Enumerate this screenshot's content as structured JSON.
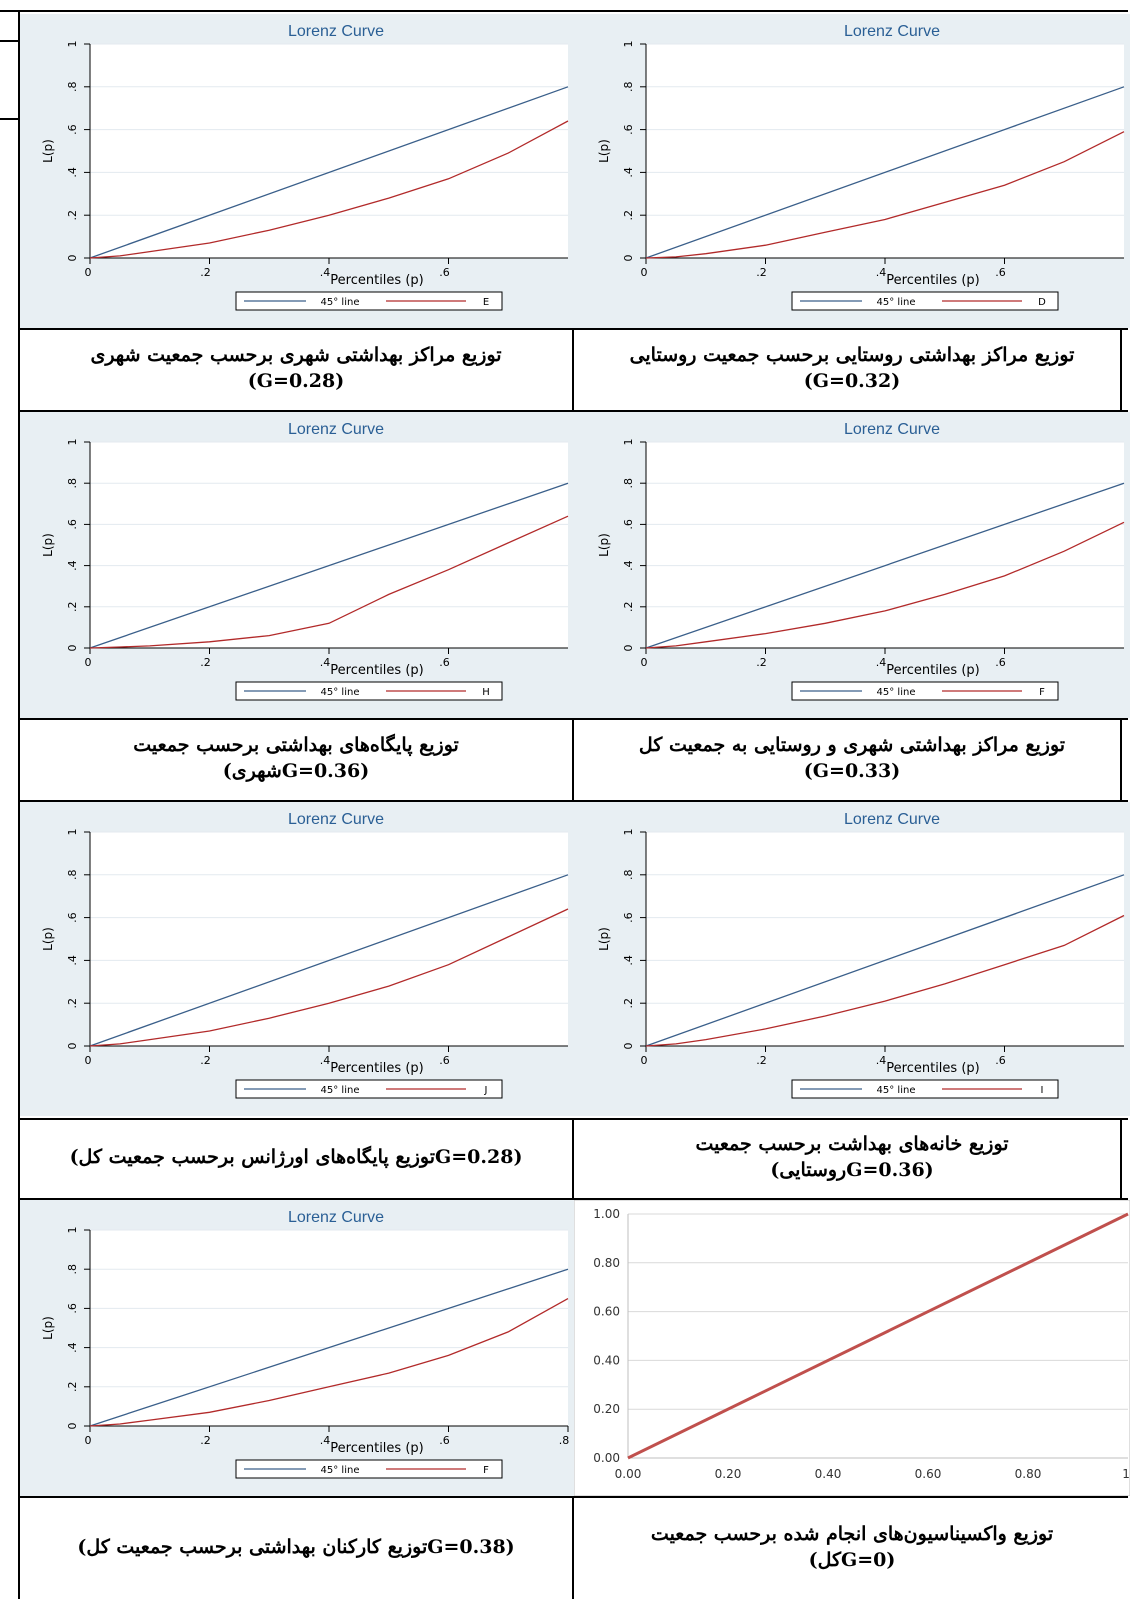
{
  "panels": [
    {
      "id": "E",
      "title": "Lorenz Curve",
      "ylabel": "L(p)",
      "xlabel": "Percentiles (p)",
      "legend": [
        "45° line",
        "E"
      ],
      "caption": [
        "توزیع مراکز بهداشتی شهری برحسب جمعیت شهری",
        "(G=0.28)"
      ]
    },
    {
      "id": "D",
      "title": "Lorenz Curve",
      "ylabel": "L(p)",
      "xlabel": "Percentiles (p)",
      "legend": [
        "45° line",
        "D"
      ],
      "caption": [
        "توزیع مراکز بهداشتی روستایی برحسب جمعیت روستایی",
        "(G=0.32)"
      ]
    },
    {
      "id": "H",
      "title": "Lorenz Curve",
      "ylabel": "L(p)",
      "xlabel": "Percentiles (p)",
      "legend": [
        "45° line",
        "H"
      ],
      "caption": [
        "توزیع پایگاه‌های بهداشتی برحسب جمعیت",
        "(G=0.36شهری)"
      ]
    },
    {
      "id": "F",
      "title": "Lorenz Curve",
      "ylabel": "L(p)",
      "xlabel": "Percentiles (p)",
      "legend": [
        "45° line",
        "F"
      ],
      "caption": [
        "توزیع مراکز بهداشتی شهری و روستایی به جمعیت کل",
        "(G=0.33)"
      ]
    },
    {
      "id": "J",
      "title": "Lorenz Curve",
      "ylabel": "L(p)",
      "xlabel": "Percentiles (p)",
      "legend": [
        "45° line",
        "J"
      ],
      "caption": [
        "(G=0.28توزیع پایگاه‌های اورژانس برحسب جمعیت کل)"
      ]
    },
    {
      "id": "I",
      "title": "Lorenz Curve",
      "ylabel": "L(p)",
      "xlabel": "Percentiles (p)",
      "legend": [
        "45° line",
        "I"
      ],
      "caption": [
        "توزیع خانه‌های بهداشت برحسب جمعیت",
        "(G=0.36روستایی)"
      ]
    },
    {
      "id": "F2",
      "title": "Lorenz Curve",
      "ylabel": "L(p)",
      "xlabel": "Percentiles (p)",
      "legend": [
        "45° line",
        "F"
      ],
      "caption": [
        "(G=0.38توزیع کارکنان بهداشتی برحسب جمعیت کل)"
      ]
    },
    {
      "id": "V",
      "title": "",
      "ylabel": "",
      "xlabel": "",
      "legend": [],
      "caption": [
        "توزیع واکسیناسیون‌های انجام شده برحسب جمعیت",
        "(G=0کل)"
      ]
    }
  ],
  "chart_data": [
    {
      "type": "line",
      "title": "Lorenz Curve",
      "xlabel": "Percentiles (p)",
      "ylabel": "L(p)",
      "xlim": [
        0,
        0.8
      ],
      "ylim": [
        0,
        1
      ],
      "xticks": [
        ".2",
        ".4",
        ".6"
      ],
      "yticks": [
        "0",
        ".2",
        ".4",
        ".6",
        ".8",
        "1"
      ],
      "series": [
        {
          "name": "45° line",
          "color": "#3a5f8a",
          "x": [
            0,
            0.8
          ],
          "y": [
            0,
            0.8
          ]
        },
        {
          "name": "E",
          "color": "#b22a2a",
          "x": [
            0,
            0.05,
            0.1,
            0.2,
            0.3,
            0.4,
            0.5,
            0.6,
            0.7,
            0.8
          ],
          "y": [
            0,
            0.01,
            0.03,
            0.07,
            0.13,
            0.2,
            0.28,
            0.37,
            0.49,
            0.64
          ]
        }
      ]
    },
    {
      "type": "line",
      "title": "Lorenz Curve",
      "xlabel": "Percentiles (p)",
      "ylabel": "L(p)",
      "xlim": [
        0,
        0.8
      ],
      "ylim": [
        0,
        1
      ],
      "xticks": [
        ".2",
        ".4",
        ".6"
      ],
      "yticks": [
        "0",
        ".2",
        ".4",
        ".6",
        ".8",
        "1"
      ],
      "series": [
        {
          "name": "45° line",
          "color": "#3a5f8a",
          "x": [
            0,
            0.8
          ],
          "y": [
            0,
            0.8
          ]
        },
        {
          "name": "D",
          "color": "#b22a2a",
          "x": [
            0,
            0.05,
            0.1,
            0.2,
            0.3,
            0.4,
            0.5,
            0.6,
            0.7,
            0.8
          ],
          "y": [
            0,
            0.005,
            0.02,
            0.06,
            0.12,
            0.18,
            0.26,
            0.34,
            0.45,
            0.59
          ]
        }
      ]
    },
    {
      "type": "line",
      "title": "Lorenz Curve",
      "xlabel": "Percentiles (p)",
      "ylabel": "L(p)",
      "xlim": [
        0,
        0.8
      ],
      "ylim": [
        0,
        1
      ],
      "xticks": [
        ".2",
        ".4",
        ".6"
      ],
      "yticks": [
        "0",
        ".2",
        ".4",
        ".6",
        ".8",
        "1"
      ],
      "series": [
        {
          "name": "45° line",
          "color": "#3a5f8a",
          "x": [
            0,
            0.8
          ],
          "y": [
            0,
            0.8
          ]
        },
        {
          "name": "H",
          "color": "#b22a2a",
          "x": [
            0,
            0.05,
            0.1,
            0.2,
            0.3,
            0.4,
            0.5,
            0.6,
            0.7,
            0.8
          ],
          "y": [
            0,
            0.005,
            0.01,
            0.03,
            0.06,
            0.12,
            0.26,
            0.38,
            0.51,
            0.64
          ]
        }
      ]
    },
    {
      "type": "line",
      "title": "Lorenz Curve",
      "xlabel": "Percentiles (p)",
      "ylabel": "L(p)",
      "xlim": [
        0,
        0.8
      ],
      "ylim": [
        0,
        1
      ],
      "xticks": [
        ".2",
        ".4",
        ".6"
      ],
      "yticks": [
        "0",
        ".2",
        ".4",
        ".6",
        ".8",
        "1"
      ],
      "series": [
        {
          "name": "45° line",
          "color": "#3a5f8a",
          "x": [
            0,
            0.8
          ],
          "y": [
            0,
            0.8
          ]
        },
        {
          "name": "F",
          "color": "#b22a2a",
          "x": [
            0,
            0.05,
            0.1,
            0.2,
            0.3,
            0.4,
            0.5,
            0.6,
            0.7,
            0.8
          ],
          "y": [
            0,
            0.01,
            0.03,
            0.07,
            0.12,
            0.18,
            0.26,
            0.35,
            0.47,
            0.61
          ]
        }
      ]
    },
    {
      "type": "line",
      "title": "Lorenz Curve",
      "xlabel": "Percentiles (p)",
      "ylabel": "L(p)",
      "xlim": [
        0,
        0.8
      ],
      "ylim": [
        0,
        1
      ],
      "xticks": [
        ".2",
        ".4",
        ".6"
      ],
      "yticks": [
        "0",
        ".2",
        ".4",
        ".6",
        ".8",
        "1"
      ],
      "series": [
        {
          "name": "45° line",
          "color": "#3a5f8a",
          "x": [
            0,
            0.8
          ],
          "y": [
            0,
            0.8
          ]
        },
        {
          "name": "J",
          "color": "#b22a2a",
          "x": [
            0,
            0.05,
            0.1,
            0.2,
            0.3,
            0.4,
            0.5,
            0.6,
            0.7,
            0.8
          ],
          "y": [
            0,
            0.01,
            0.03,
            0.07,
            0.13,
            0.2,
            0.28,
            0.38,
            0.51,
            0.64
          ]
        }
      ]
    },
    {
      "type": "line",
      "title": "Lorenz Curve",
      "xlabel": "Percentiles (p)",
      "ylabel": "L(p)",
      "xlim": [
        0,
        0.8
      ],
      "ylim": [
        0,
        1
      ],
      "xticks": [
        ".2",
        ".4",
        ".6"
      ],
      "yticks": [
        "0",
        ".2",
        ".4",
        ".6",
        ".8",
        "1"
      ],
      "series": [
        {
          "name": "45° line",
          "color": "#3a5f8a",
          "x": [
            0,
            0.8
          ],
          "y": [
            0,
            0.8
          ]
        },
        {
          "name": "I",
          "color": "#b22a2a",
          "x": [
            0,
            0.05,
            0.1,
            0.2,
            0.3,
            0.4,
            0.5,
            0.6,
            0.7,
            0.8
          ],
          "y": [
            0,
            0.01,
            0.03,
            0.08,
            0.14,
            0.21,
            0.29,
            0.38,
            0.47,
            0.61
          ]
        }
      ]
    },
    {
      "type": "line",
      "title": "Lorenz Curve",
      "xlabel": "Percentiles (p)",
      "ylabel": "L(p)",
      "xlim": [
        0,
        0.8
      ],
      "ylim": [
        0,
        1
      ],
      "xticks": [
        ".2",
        ".4",
        ".6",
        ".8"
      ],
      "yticks": [
        "0",
        ".2",
        ".4",
        ".6",
        ".8",
        "1"
      ],
      "series": [
        {
          "name": "45° line",
          "color": "#3a5f8a",
          "x": [
            0,
            0.8
          ],
          "y": [
            0,
            0.8
          ]
        },
        {
          "name": "F",
          "color": "#b22a2a",
          "x": [
            0,
            0.05,
            0.1,
            0.2,
            0.3,
            0.4,
            0.5,
            0.6,
            0.7,
            0.8
          ],
          "y": [
            0,
            0.01,
            0.03,
            0.07,
            0.13,
            0.2,
            0.27,
            0.36,
            0.48,
            0.65
          ]
        }
      ]
    },
    {
      "type": "line",
      "title": "",
      "xlabel": "",
      "ylabel": "",
      "xlim": [
        0,
        1
      ],
      "ylim": [
        0,
        1
      ],
      "xticks": [
        "0.00",
        "0.20",
        "0.40",
        "0.60",
        "0.80",
        "1."
      ],
      "yticks": [
        "0.00",
        "0.20",
        "0.40",
        "0.60",
        "0.80",
        "1.00"
      ],
      "series": [
        {
          "color": "#c0504d",
          "x": [
            0,
            1
          ],
          "y": [
            0,
            1
          ]
        }
      ]
    }
  ]
}
